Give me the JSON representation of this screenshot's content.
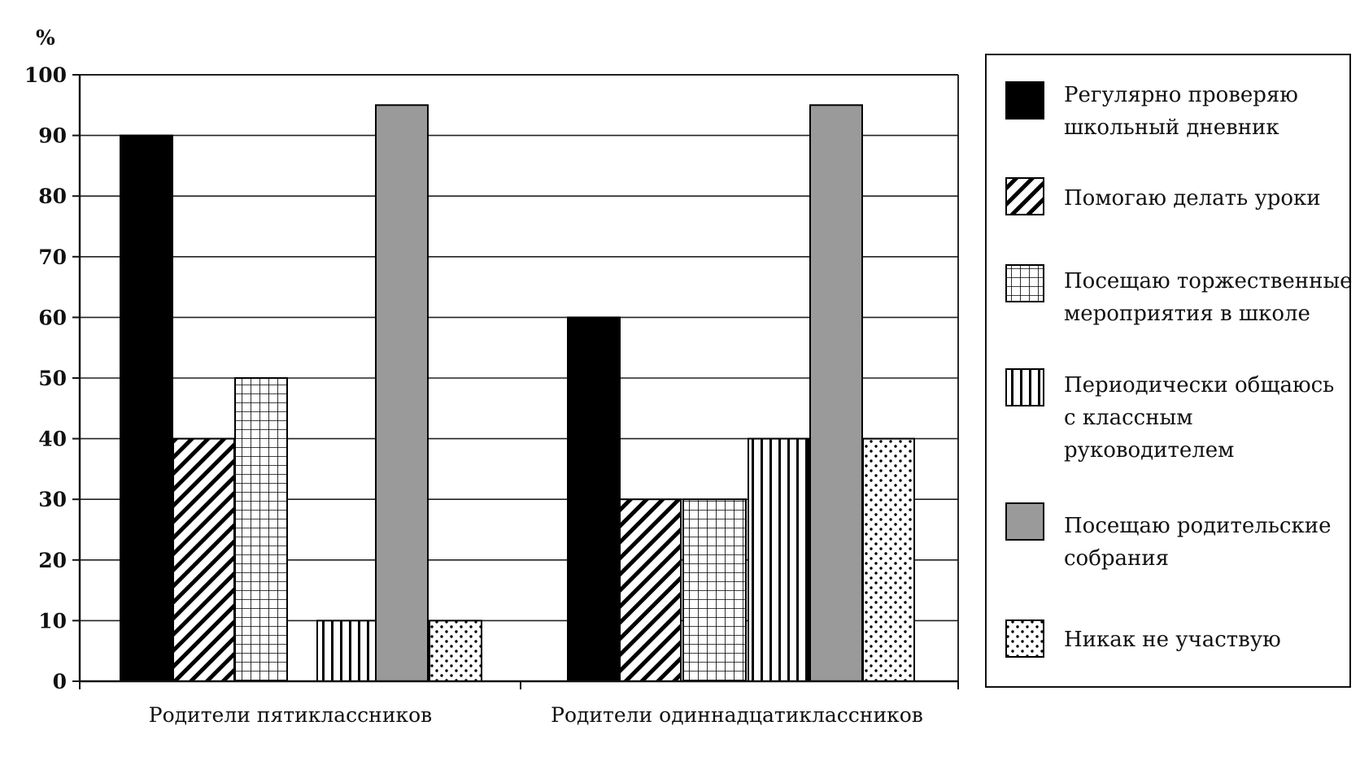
{
  "chart_data": {
    "type": "bar",
    "y_unit_label": "%",
    "categories": [
      "Родители пятиклассников",
      "Родители одиннадцатиклассников"
    ],
    "ylim": [
      0,
      100
    ],
    "yticks": [
      0,
      10,
      20,
      30,
      40,
      50,
      60,
      70,
      80,
      90,
      100
    ],
    "grid": true,
    "legend_position": "right",
    "series": [
      {
        "name": "Регулярно проверяю школьный дневник",
        "legend_lines": [
          "Регулярно проверяю",
          "школьный дневник"
        ],
        "pattern": "solid-black",
        "values": [
          90,
          60
        ]
      },
      {
        "name": "Помогаю делать уроки",
        "legend_lines": [
          "Помогаю делать уроки"
        ],
        "pattern": "diagonal-hatch",
        "values": [
          40,
          30
        ]
      },
      {
        "name": "Посещаю торжественные мероприятия в школе",
        "legend_lines": [
          "Посещаю торжественные",
          "мероприятия в школе"
        ],
        "pattern": "grid",
        "values": [
          50,
          30
        ]
      },
      {
        "name": "Периодически общаюсь с классным руководителем",
        "legend_lines": [
          "Периодически общаюсь",
          "с классным",
          "руководителем"
        ],
        "pattern": "vertical-lines",
        "values": [
          10,
          40
        ]
      },
      {
        "name": "Посещаю родительские собрания",
        "legend_lines": [
          "Посещаю родительские",
          "собрания"
        ],
        "pattern": "solid-gray",
        "values": [
          95,
          95
        ]
      },
      {
        "name": "Никак не участвую",
        "legend_lines": [
          "Никак не участвую"
        ],
        "pattern": "dots",
        "values": [
          10,
          40
        ]
      }
    ]
  },
  "colors": {
    "gray_fill": "#9a9a9a",
    "black_fill": "#000000",
    "grid_line": "#222222"
  }
}
